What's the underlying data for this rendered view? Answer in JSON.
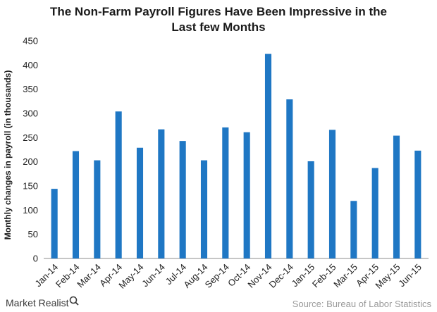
{
  "chart_data": {
    "type": "bar",
    "title_lines": [
      "The Non-Farm Payroll Figures Have Been Impressive in the",
      "Last few Months"
    ],
    "ylabel": "Monthly changes in payroll (in thousands)",
    "xlabel": "",
    "ylim": [
      0,
      450
    ],
    "yticks": [
      0,
      50,
      100,
      150,
      200,
      250,
      300,
      350,
      400,
      450
    ],
    "categories": [
      "Jan-14",
      "Feb-14",
      "Mar-14",
      "Apr-14",
      "May-14",
      "Jun-14",
      "Jul-14",
      "Aug-14",
      "Sep-14",
      "Oct-14",
      "Nov-14",
      "Dec-14",
      "Jan-15",
      "Feb-15",
      "Mar-15",
      "Apr-15",
      "May-15",
      "Jun-15"
    ],
    "values": [
      144,
      222,
      203,
      304,
      229,
      267,
      243,
      203,
      271,
      261,
      423,
      329,
      201,
      266,
      119,
      187,
      254,
      223
    ],
    "bar_color": "#1f77c4",
    "grid": false,
    "legend": "none"
  },
  "footer": {
    "brand": "Market Realist",
    "source": "Source: Bureau of Labor Statistics"
  }
}
